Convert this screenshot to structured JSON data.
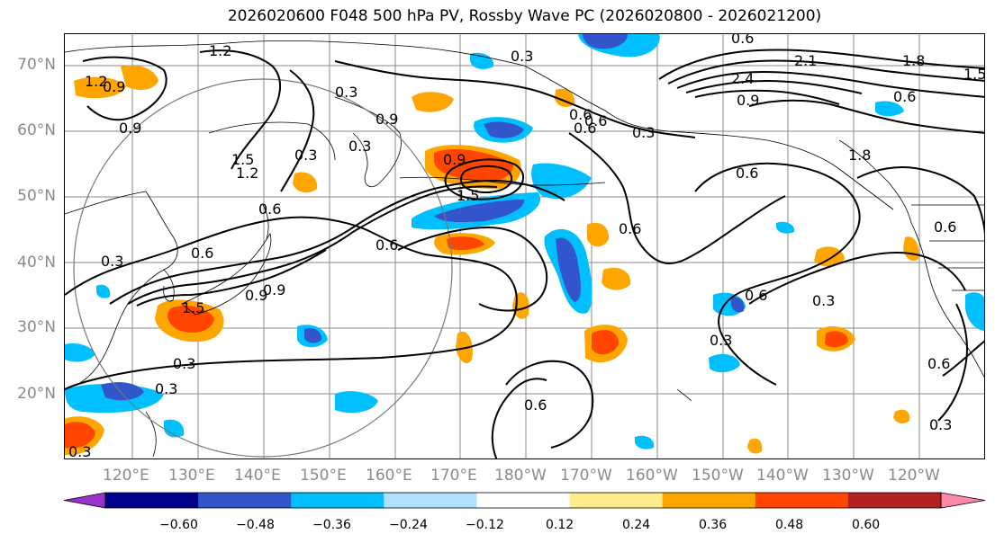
{
  "title": "2026020600 F048 500 hPa PV, Rossby Wave PC (2026020800 - 2026021200)",
  "lat_labels": [
    "70°N",
    "60°N",
    "50°N",
    "40°N",
    "30°N",
    "20°N"
  ],
  "lon_labels": [
    "120°E",
    "130°E",
    "140°E",
    "150°E",
    "160°E",
    "170°E",
    "180°W",
    "170°W",
    "160°W",
    "150°W",
    "140°W",
    "130°W",
    "120°W"
  ],
  "colorbar": {
    "colors": [
      "#9932cc",
      "#00008b",
      "#3355cc",
      "#00bfff",
      "#b0e0ff",
      "#ffffff",
      "#ffec8b",
      "#ffa500",
      "#ff4500",
      "#b22222",
      "#ff88aa"
    ],
    "ticks": [
      "−0.60",
      "−0.48",
      "−0.36",
      "−0.24",
      "−0.12",
      "0.12",
      "0.24",
      "0.36",
      "0.48",
      "0.60"
    ]
  },
  "contour_labels": [
    "1.2",
    "1.2",
    "1.2",
    "0.9",
    "0.9",
    "1.5",
    "0.3",
    "0.3",
    "0.3",
    "0.3",
    "0.6",
    "0.6",
    "0.6",
    "0.9",
    "2.1",
    "1.8",
    "1.5",
    "2.4",
    "0.9",
    "0.6",
    "0.6",
    "0.3",
    "0.3",
    "0.6",
    "0.9",
    "0.6",
    "0.6",
    "0.6",
    "0.3",
    "0.3",
    "0.6",
    "0.6",
    "0.3",
    "1.5",
    "1.8",
    "0.3",
    "0.3",
    "0.3",
    "0.6",
    "0.6",
    "0.9",
    "1.5",
    "0.9",
    "0.6"
  ],
  "colors": {
    "positive": "#ff4500",
    "negative": "#3355cc",
    "contour": "#000000",
    "coast": "#000000",
    "grid": "#888888"
  }
}
